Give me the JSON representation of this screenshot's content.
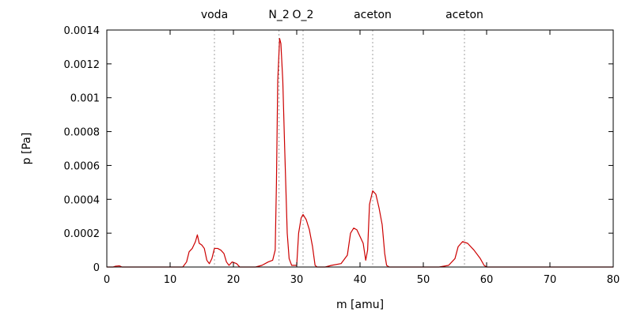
{
  "chart_data": {
    "type": "line",
    "xlabel": "m [amu]",
    "ylabel": "p [Pa]",
    "xlim": [
      0,
      80
    ],
    "ylim": [
      0,
      0.0014
    ],
    "x_ticks": [
      0,
      10,
      20,
      30,
      40,
      50,
      60,
      70,
      80
    ],
    "x_tick_labels": [
      "0",
      "10",
      "20",
      "30",
      "40",
      "50",
      "60",
      "70",
      "80"
    ],
    "y_ticks": [
      0,
      0.0002,
      0.0004,
      0.0006,
      0.0008,
      0.001,
      0.0012,
      0.0014
    ],
    "y_tick_labels": [
      "0",
      "0.0002",
      "0.0004",
      "0.0006",
      "0.0008",
      "0.001",
      "0.0012",
      "0.0014"
    ],
    "grid": false,
    "line_color": "#cc0000",
    "marker_line_color": "#a0a0a0",
    "markers": [
      {
        "x": 17,
        "label": "voda"
      },
      {
        "x": 27.2,
        "label": "N_2"
      },
      {
        "x": 31,
        "label": "O_2"
      },
      {
        "x": 42,
        "label": "aceton"
      },
      {
        "x": 56.5,
        "label": "aceton"
      }
    ],
    "series": [
      {
        "points": [
          [
            0,
            0
          ],
          [
            1.0,
            0
          ],
          [
            1.4,
            5e-06
          ],
          [
            2.0,
            7e-06
          ],
          [
            2.4,
            0
          ],
          [
            12.0,
            0
          ],
          [
            12.6,
            3e-05
          ],
          [
            13.0,
            9e-05
          ],
          [
            13.5,
            0.00011
          ],
          [
            14.0,
            0.00015
          ],
          [
            14.3,
            0.00019
          ],
          [
            14.6,
            0.00014
          ],
          [
            15.0,
            0.00013
          ],
          [
            15.4,
            0.00011
          ],
          [
            15.8,
            4e-05
          ],
          [
            16.2,
            2e-05
          ],
          [
            16.6,
            5e-05
          ],
          [
            17.0,
            0.00011
          ],
          [
            17.5,
            0.00011
          ],
          [
            18.0,
            0.0001
          ],
          [
            18.5,
            8e-05
          ],
          [
            18.9,
            3e-05
          ],
          [
            19.3,
            1e-05
          ],
          [
            19.8,
            3e-05
          ],
          [
            20.5,
            2e-05
          ],
          [
            21.0,
            0
          ],
          [
            23.5,
            0
          ],
          [
            24.5,
            1e-05
          ],
          [
            25.5,
            3e-05
          ],
          [
            26.2,
            4e-05
          ],
          [
            26.6,
            0.0001
          ],
          [
            26.8,
            0.0005
          ],
          [
            27.0,
            0.0011
          ],
          [
            27.3,
            0.00135
          ],
          [
            27.5,
            0.00132
          ],
          [
            27.8,
            0.0011
          ],
          [
            28.1,
            0.0007
          ],
          [
            28.5,
            0.0002
          ],
          [
            28.8,
            5e-05
          ],
          [
            29.2,
            1e-05
          ],
          [
            30.0,
            1e-05
          ],
          [
            30.3,
            0.0002
          ],
          [
            30.7,
            0.00029
          ],
          [
            31.0,
            0.00031
          ],
          [
            31.5,
            0.00028
          ],
          [
            32.0,
            0.00022
          ],
          [
            32.5,
            0.00012
          ],
          [
            32.9,
            1e-05
          ],
          [
            33.2,
            0
          ],
          [
            34.5,
            0
          ],
          [
            35.5,
            1e-05
          ],
          [
            37.0,
            2e-05
          ],
          [
            38.0,
            7e-05
          ],
          [
            38.5,
            0.0002
          ],
          [
            39.0,
            0.00023
          ],
          [
            39.5,
            0.00022
          ],
          [
            40.0,
            0.00018
          ],
          [
            40.5,
            0.00014
          ],
          [
            40.9,
            4e-05
          ],
          [
            41.2,
            0.0001
          ],
          [
            41.5,
            0.00037
          ],
          [
            42.0,
            0.00045
          ],
          [
            42.5,
            0.00043
          ],
          [
            43.0,
            0.00035
          ],
          [
            43.5,
            0.00025
          ],
          [
            43.9,
            8e-05
          ],
          [
            44.2,
            1e-05
          ],
          [
            44.6,
            0
          ],
          [
            52.5,
            0
          ],
          [
            54.0,
            1e-05
          ],
          [
            55.0,
            5e-05
          ],
          [
            55.5,
            0.00012
          ],
          [
            56.2,
            0.00015
          ],
          [
            57.0,
            0.00014
          ],
          [
            58.0,
            0.0001
          ],
          [
            59.0,
            5e-05
          ],
          [
            59.6,
            1e-05
          ],
          [
            60.0,
            0
          ],
          [
            80.0,
            0
          ]
        ]
      }
    ]
  }
}
